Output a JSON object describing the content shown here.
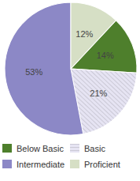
{
  "chart_data": {
    "type": "pie",
    "categories": [
      "Below Basic",
      "Basic",
      "Intermediate",
      "Proficient"
    ],
    "values": [
      14,
      21,
      53,
      12
    ],
    "value_labels": [
      "14%",
      "21%",
      "53%",
      "12%"
    ],
    "colors": [
      "#4e7f2c",
      "#e6e4f3",
      "#8c88c6",
      "#d6dfc5"
    ],
    "data_labels": true,
    "legend": "bottom"
  }
}
